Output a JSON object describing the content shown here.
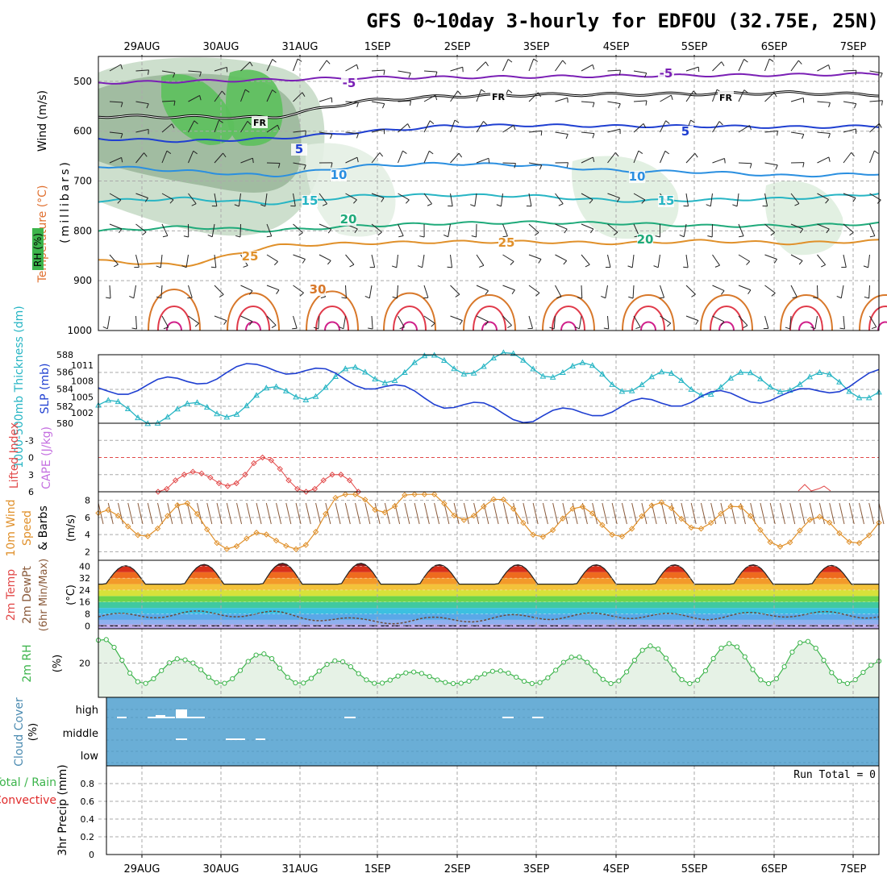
{
  "title": "GFS 0~10day 3-hourly for EDFOU (32.75E, 25N)",
  "dates": [
    "29AUG",
    "30AUG",
    "31AUG",
    "1SEP",
    "2SEP",
    "3SEP",
    "4SEP",
    "5SEP",
    "6SEP",
    "7SEP"
  ],
  "colors": {
    "rh": "#3cb44b",
    "rh_dark": "#1f6b2a",
    "temp_freeze": "#000000",
    "temp_cold": "#7a1fb5",
    "slp": "#1f3fd1",
    "thickness": "#27b5c4",
    "lifted_index": "#e24a4a",
    "cape": "#c46fe0",
    "wind": "#e0902a",
    "cloud": "#6aaed6",
    "precip_total": "#3cb44b",
    "precip_conv": "#e02a2a",
    "grid": "#aaaaaa"
  },
  "panels": {
    "upper": {
      "ylabels": [
        {
          "text": "Wind (m/s)",
          "color": "#000000"
        },
        {
          "text": "Temperature (°C)",
          "color": "#e07030"
        },
        {
          "text": "RH (%)",
          "color": "#3cb44b"
        },
        {
          "text": "(millibars)",
          "color": "#000000"
        }
      ],
      "ticks": [
        "500",
        "600",
        "700",
        "800",
        "900",
        "1000"
      ]
    },
    "slp": {
      "label_thickness": "1000-500mb Thickness (dm)",
      "label_slp": "SLP (mb)",
      "ticks_left": [
        "588",
        "586",
        "584",
        "582",
        "580"
      ],
      "ticks_right": [
        "1011",
        "1008",
        "1005",
        "1002"
      ]
    },
    "li": {
      "label_li": "Lifted Index",
      "label_cape": "CAPE (J/kg)",
      "ticks": [
        "-3",
        "0",
        "3",
        "6"
      ]
    },
    "wind": {
      "label_a": "10m Wind",
      "label_b": "Speed",
      "label_c": "& Barbs",
      "unit": "(m/s)",
      "ticks": [
        "8",
        "6",
        "4",
        "2"
      ]
    },
    "temp": {
      "label_a": "2m Temp",
      "label_b": "2m DewPt",
      "label_c": "(6hr Min/Max)",
      "unit": "(°C)",
      "ticks": [
        "40",
        "32",
        "24",
        "16",
        "8",
        "0"
      ]
    },
    "rh": {
      "label": "2m RH",
      "unit": "(%)",
      "ticks": [
        "20"
      ]
    },
    "cloud": {
      "label": "Cloud Cover",
      "unit": "(%)",
      "levels": [
        "high",
        "middle",
        "low"
      ]
    },
    "precip": {
      "label_total": "Total / Rain",
      "label_conv": "Convective",
      "label_axis": "3hr Precip (mm)",
      "run_total": "Run Total = 0",
      "ticks": [
        "0.8",
        "0.6",
        "0.4",
        "0.2",
        "0"
      ]
    }
  },
  "contour_labels": [
    {
      "text": "-5",
      "color": "#7a1fb5"
    },
    {
      "text": "-5",
      "color": "#7a1fb5"
    },
    {
      "text": "FR",
      "color": "#000000"
    },
    {
      "text": "FR",
      "color": "#000000"
    },
    {
      "text": "FR",
      "color": "#000000"
    },
    {
      "text": "5",
      "color": "#1f3fd1"
    },
    {
      "text": "5",
      "color": "#1f3fd1"
    },
    {
      "text": "10",
      "color": "#2a8fe0"
    },
    {
      "text": "10",
      "color": "#2a8fe0"
    },
    {
      "text": "15",
      "color": "#27b5c4"
    },
    {
      "text": "15",
      "color": "#27b5c4"
    },
    {
      "text": "20",
      "color": "#1faa7a"
    },
    {
      "text": "20",
      "color": "#1faa7a"
    },
    {
      "text": "25",
      "color": "#e0902a"
    },
    {
      "text": "25",
      "color": "#e0902a"
    },
    {
      "text": "30",
      "color": "#d8782a"
    }
  ],
  "chart_data": [
    {
      "type": "area",
      "name": "upper air cross-section",
      "x": [
        "29AUG",
        "30AUG",
        "31AUG",
        "1SEP",
        "2SEP",
        "3SEP",
        "4SEP",
        "5SEP",
        "6SEP",
        "7SEP"
      ],
      "ylim": [
        1000,
        450
      ],
      "isotherm_levels_mb": {
        "-5": [
          503,
          500,
          497,
          493,
          492,
          491,
          489,
          488,
          487,
          485
        ],
        "FR": [
          570,
          571,
          573,
          540,
          530,
          527,
          526,
          525,
          523,
          527
        ],
        "5": [
          615,
          620,
          615,
          602,
          590,
          588,
          590,
          590,
          592,
          590
        ],
        "10": [
          670,
          680,
          690,
          670,
          665,
          668,
          680,
          682,
          690,
          685
        ],
        "15": [
          740,
          735,
          745,
          730,
          728,
          730,
          740,
          738,
          735,
          725
        ],
        "20": [
          800,
          792,
          800,
          790,
          785,
          783,
          785,
          790,
          790,
          785
        ],
        "25": [
          860,
          870,
          830,
          825,
          822,
          822,
          825,
          820,
          825,
          820
        ],
        "30": [
          890,
          900,
          895,
          900,
          905,
          905,
          905,
          905,
          905,
          905
        ]
      }
    },
    {
      "type": "line",
      "name": "SLP and thickness",
      "x": [
        "29AUG",
        "30AUG",
        "31AUG",
        "1SEP",
        "2SEP",
        "3SEP",
        "4SEP",
        "5SEP",
        "6SEP",
        "7SEP"
      ],
      "series": [
        {
          "name": "SLP (mb)",
          "values": [
            1006,
            1008,
            1011,
            1008,
            1004,
            1001,
            1003,
            1005,
            1005,
            1009
          ]
        },
        {
          "name": "1000-500mb Thickness (dm)",
          "values": [
            581.5,
            581,
            583,
            585.5,
            587,
            587,
            585,
            584.5,
            585,
            584
          ]
        }
      ],
      "ylim_left": [
        580,
        588
      ],
      "ylim_right": [
        1000,
        1013
      ]
    },
    {
      "type": "line",
      "name": "Lifted Index",
      "x": [
        "29AUG",
        "30AUG",
        "31AUG",
        "1SEP",
        "6SEP"
      ],
      "series": [
        {
          "name": "Lifted Index",
          "values": [
            6,
            3,
            0,
            3,
            6
          ]
        }
      ],
      "ylim": [
        6,
        -6
      ]
    },
    {
      "type": "line",
      "name": "10m wind speed",
      "x": [
        "29AUG",
        "30AUG",
        "31AUG",
        "1SEP",
        "2SEP",
        "3SEP",
        "4SEP",
        "5SEP",
        "6SEP",
        "7SEP"
      ],
      "series": [
        {
          "name": "Speed",
          "values": [
            5,
            6,
            2,
            8.5,
            8,
            5.5,
            5.5,
            6.5,
            4,
            5
          ]
        }
      ],
      "ylim": [
        1,
        9
      ]
    },
    {
      "type": "area",
      "name": "2m Temp / DewPt",
      "x": [
        "29AUG",
        "30AUG",
        "31AUG",
        "1SEP",
        "2SEP",
        "3SEP",
        "4SEP",
        "5SEP",
        "6SEP",
        "7SEP"
      ],
      "series": [
        {
          "name": "2m Temp max",
          "values": [
            40,
            41,
            42,
            42,
            41,
            41,
            41,
            41,
            41,
            40
          ]
        },
        {
          "name": "2m Temp min",
          "values": [
            28,
            29,
            29,
            29,
            29,
            29,
            28,
            29,
            29,
            28
          ]
        },
        {
          "name": "2m DewPt",
          "values": [
            6,
            8,
            8,
            3,
            4,
            6,
            7,
            6,
            8,
            7
          ]
        }
      ],
      "ylim": [
        -2,
        44
      ]
    },
    {
      "type": "line",
      "name": "2m RH",
      "x": [
        "29AUG",
        "30AUG",
        "31AUG",
        "1SEP",
        "2SEP",
        "3SEP",
        "4SEP",
        "5SEP",
        "6SEP",
        "7SEP"
      ],
      "series": [
        {
          "name": "2m RH",
          "values": [
            35,
            22,
            26,
            20,
            12,
            18,
            30,
            30,
            35,
            22
          ]
        }
      ],
      "ylim": [
        0,
        40
      ]
    },
    {
      "type": "bar",
      "name": "Cloud Cover",
      "categories": [
        "high",
        "middle",
        "low"
      ],
      "values": [
        5,
        2,
        0
      ]
    },
    {
      "type": "bar",
      "name": "3hr Precip",
      "categories": [
        "29AUG",
        "30AUG",
        "31AUG",
        "1SEP",
        "2SEP",
        "3SEP",
        "4SEP",
        "5SEP",
        "6SEP",
        "7SEP"
      ],
      "values": [
        0,
        0,
        0,
        0,
        0,
        0,
        0,
        0,
        0,
        0
      ],
      "ylim": [
        0,
        1
      ]
    }
  ]
}
